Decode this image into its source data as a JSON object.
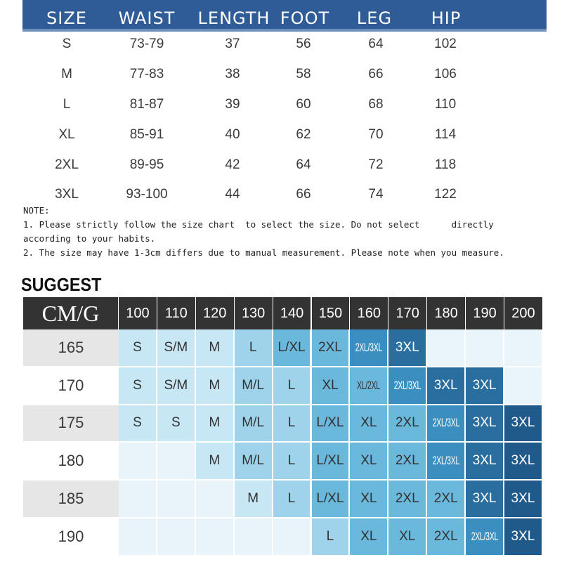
{
  "size_chart": {
    "headers": [
      "SIZE",
      "WAIST",
      "LENGTH",
      "FOOT",
      "LEG",
      "HIP"
    ],
    "rows": [
      [
        "S",
        "73-79",
        "37",
        "56",
        "64",
        "102"
      ],
      [
        "M",
        "77-83",
        "38",
        "58",
        "66",
        "106"
      ],
      [
        "L",
        "81-87",
        "39",
        "60",
        "68",
        "110"
      ],
      [
        "XL",
        "85-91",
        "40",
        "62",
        "70",
        "114"
      ],
      [
        "2XL",
        "89-95",
        "42",
        "64",
        "72",
        "118"
      ],
      [
        "3XL",
        "93-100",
        "44",
        "66",
        "74",
        "122"
      ]
    ]
  },
  "note": {
    "label": "NOTE:",
    "line1": "1. Please strictly follow the size chart  to select the size. Do not select      directly",
    "line2": "according to your habits.",
    "line3": "2. The size may have 1-3cm differs due to manual measurement. Please note when you measure."
  },
  "suggest": {
    "title": "SUGGEST",
    "corner": "CM/G",
    "weights": [
      "100",
      "110",
      "120",
      "130",
      "140",
      "150",
      "160",
      "170",
      "180",
      "190",
      "200"
    ],
    "rows": [
      {
        "height": "165",
        "cells": [
          "S",
          "S/M",
          "M",
          "L",
          "L/XL",
          "2XL",
          "2XL/3XL",
          "3XL",
          "",
          "",
          ""
        ]
      },
      {
        "height": "170",
        "cells": [
          "S",
          "S/M",
          "M",
          "M/L",
          "L",
          "XL",
          "XL/2XL",
          "2XL/3XL",
          "3XL",
          "3XL",
          ""
        ]
      },
      {
        "height": "175",
        "cells": [
          "S",
          "S",
          "M",
          "M/L",
          "L",
          "L/XL",
          "XL",
          "2XL",
          "2XL/3XL",
          "3XL",
          "3XL"
        ]
      },
      {
        "height": "180",
        "cells": [
          "",
          "",
          "M",
          "M/L",
          "L",
          "L/XL",
          "XL",
          "2XL",
          "2XL/3XL",
          "3XL",
          "3XL"
        ]
      },
      {
        "height": "185",
        "cells": [
          "",
          "",
          "",
          "M",
          "L",
          "L/XL",
          "XL",
          "2XL",
          "2XL",
          "3XL",
          "3XL"
        ]
      },
      {
        "height": "190",
        "cells": [
          "",
          "",
          "",
          "",
          "",
          "L",
          "XL",
          "XL",
          "2XL",
          "2XL/3XL",
          "3XL"
        ]
      }
    ],
    "colors": {
      "label_light": "#e6e6e6",
      "label_white": "#ffffff",
      "header": "#333333",
      "palette": [
        "#e3f2fa",
        "#c8e7f4",
        "#9fd3ec",
        "#6bb8dd",
        "#3a8fc0",
        "#2a6e9f",
        "#1f5a8a"
      ]
    }
  }
}
